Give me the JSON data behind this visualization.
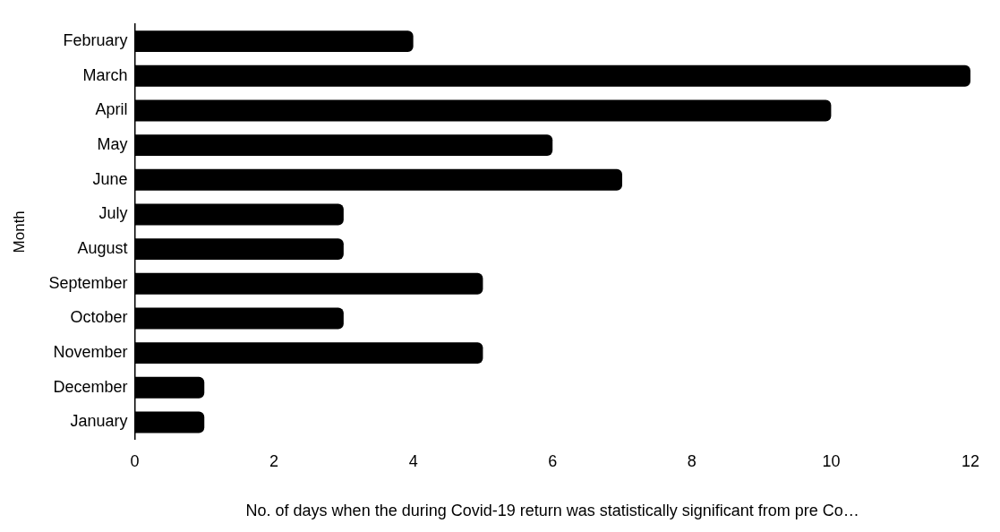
{
  "chart_data": {
    "type": "bar",
    "orientation": "horizontal",
    "categories": [
      "February",
      "March",
      "April",
      "May",
      "June",
      "July",
      "August",
      "September",
      "October",
      "November",
      "December",
      "January"
    ],
    "values": [
      4,
      12,
      10,
      6,
      7,
      3,
      3,
      5,
      3,
      5,
      1,
      1
    ],
    "color": "#000000",
    "xlabel": "No. of days when the during Covid-19 return was statistically significant from pre Co…",
    "ylabel": "Month",
    "xlim": [
      0,
      12
    ],
    "xticks": [
      0,
      2,
      4,
      6,
      8,
      10,
      12
    ],
    "legend": false,
    "grid": false
  }
}
